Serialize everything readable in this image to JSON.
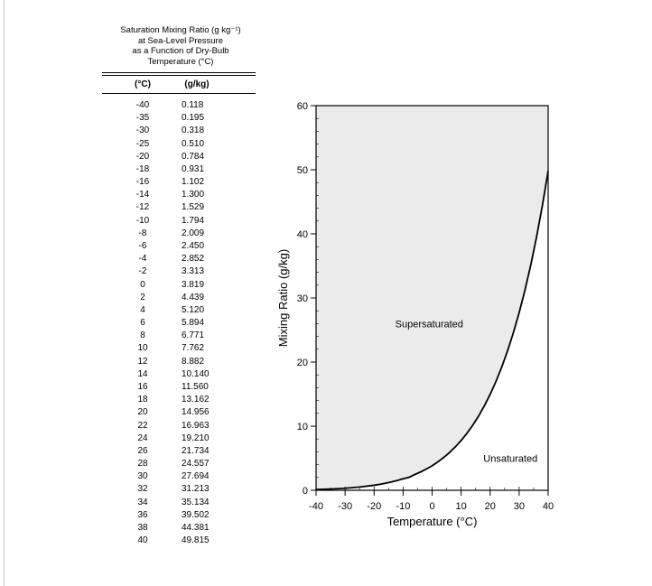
{
  "table": {
    "title_lines": [
      "Saturation Mixing Ratio (g kg⁻¹)",
      "at Sea-Level Pressure",
      "as a Function of Dry-Bulb",
      "Temperature (°C)"
    ],
    "headers": [
      "(°C)",
      "(g/kg)"
    ],
    "rows": [
      [
        "-40",
        "0.118"
      ],
      [
        "-35",
        "0.195"
      ],
      [
        "-30",
        "0.318"
      ],
      [
        "-25",
        "0.510"
      ],
      [
        "-20",
        "0.784"
      ],
      [
        "-18",
        "0.931"
      ],
      [
        "-16",
        "1.102"
      ],
      [
        "-14",
        "1.300"
      ],
      [
        "-12",
        "1.529"
      ],
      [
        "-10",
        "1.794"
      ],
      [
        "-8",
        "2.009"
      ],
      [
        "-6",
        "2.450"
      ],
      [
        "-4",
        "2.852"
      ],
      [
        "-2",
        "3.313"
      ],
      [
        "0",
        "3.819"
      ],
      [
        "2",
        "4.439"
      ],
      [
        "4",
        "5.120"
      ],
      [
        "6",
        "5.894"
      ],
      [
        "8",
        "6.771"
      ],
      [
        "10",
        "7.762"
      ],
      [
        "12",
        "8.882"
      ],
      [
        "14",
        "10.140"
      ],
      [
        "16",
        "11.560"
      ],
      [
        "18",
        "13.162"
      ],
      [
        "20",
        "14.956"
      ],
      [
        "22",
        "16.963"
      ],
      [
        "24",
        "19.210"
      ],
      [
        "26",
        "21.734"
      ],
      [
        "28",
        "24.557"
      ],
      [
        "30",
        "27.694"
      ],
      [
        "32",
        "31.213"
      ],
      [
        "34",
        "35.134"
      ],
      [
        "36",
        "39.502"
      ],
      [
        "38",
        "44.381"
      ],
      [
        "40",
        "49.815"
      ]
    ]
  },
  "chart_data": {
    "type": "line",
    "xlabel": "Temperature (°C)",
    "ylabel": "Mixing Ratio (g/kg)",
    "xlim": [
      -40,
      40
    ],
    "ylim": [
      0,
      60
    ],
    "xticks": [
      -40,
      -30,
      -20,
      -10,
      0,
      10,
      20,
      30,
      40
    ],
    "yticks": [
      0,
      10,
      20,
      30,
      40,
      50,
      60
    ],
    "grid": false,
    "regions": {
      "above_curve": "Supersaturated",
      "below_curve": "Unsaturated"
    },
    "colors": {
      "shade": "#ebebeb",
      "curve": "#000000"
    },
    "series": [
      {
        "x": [
          -40,
          -35,
          -30,
          -25,
          -20,
          -18,
          -16,
          -14,
          -12,
          -10,
          -8,
          -6,
          -4,
          -2,
          0,
          2,
          4,
          6,
          8,
          10,
          12,
          14,
          16,
          18,
          20,
          22,
          24,
          26,
          28,
          30,
          32,
          34,
          36,
          38,
          40
        ],
        "values": [
          0.118,
          0.195,
          0.318,
          0.51,
          0.784,
          0.931,
          1.102,
          1.3,
          1.529,
          1.794,
          2.009,
          2.45,
          2.852,
          3.313,
          3.819,
          4.439,
          5.12,
          5.894,
          6.771,
          7.762,
          8.882,
          10.14,
          11.56,
          13.162,
          14.956,
          16.963,
          19.21,
          21.734,
          24.557,
          27.694,
          31.213,
          35.134,
          39.502,
          44.381,
          49.815
        ]
      }
    ]
  }
}
